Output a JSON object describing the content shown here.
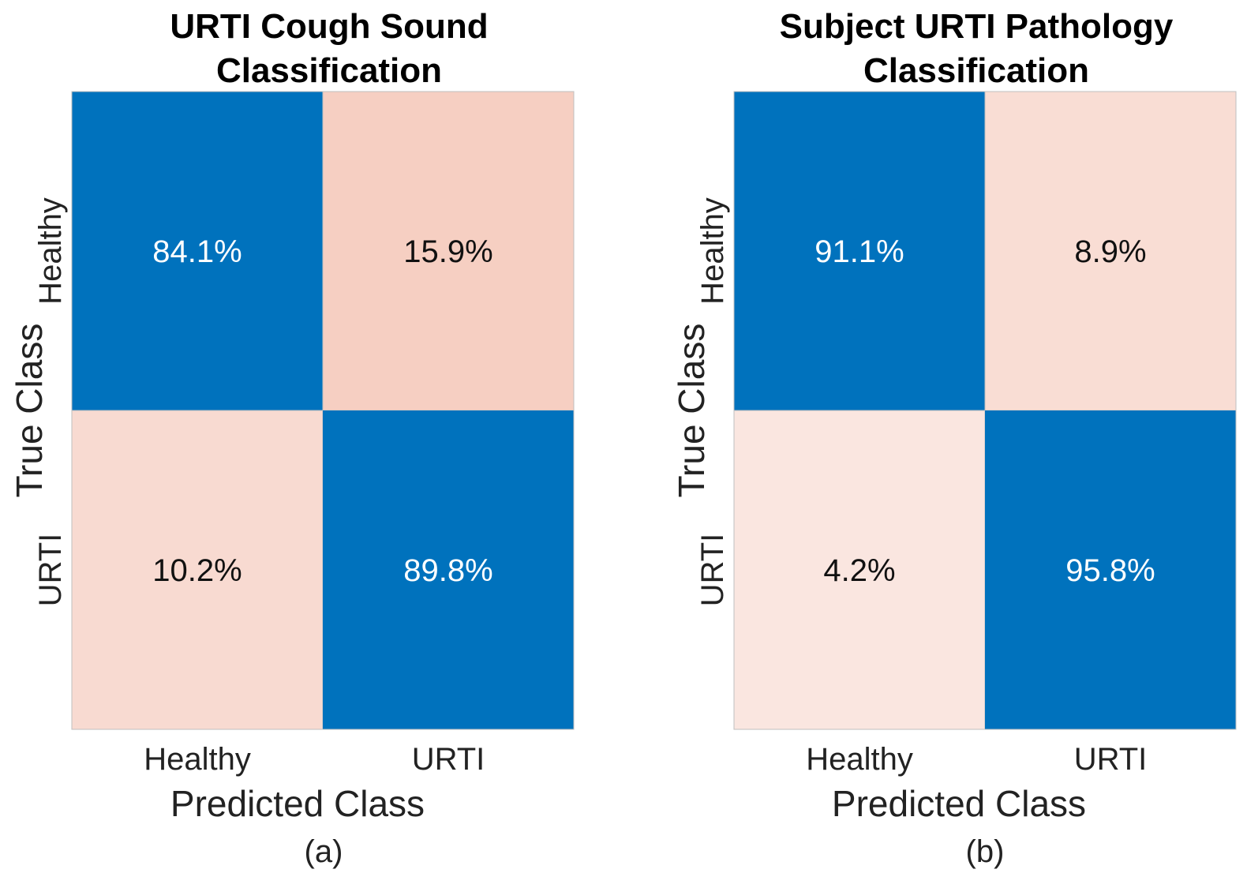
{
  "chart_data": [
    {
      "type": "heatmap",
      "panel": "a",
      "title_lines": [
        "URTI Cough Sound",
        "Classification"
      ],
      "xlabel": "Predicted Class",
      "ylabel": "True Class",
      "categories": [
        "Healthy",
        "URTI"
      ],
      "rows": [
        {
          "true_class": "Healthy",
          "values": [
            84.1,
            15.9
          ],
          "labels": [
            "84.1%",
            "15.9%"
          ]
        },
        {
          "true_class": "URTI",
          "values": [
            10.2,
            89.8
          ],
          "labels": [
            "10.2%",
            "89.8%"
          ]
        }
      ],
      "caption": "(a)"
    },
    {
      "type": "heatmap",
      "panel": "b",
      "title_lines": [
        "Subject URTI Pathology",
        "Classification"
      ],
      "xlabel": "Predicted Class",
      "ylabel": "True Class",
      "categories": [
        "Healthy",
        "URTI"
      ],
      "rows": [
        {
          "true_class": "Healthy",
          "values": [
            91.1,
            8.9
          ],
          "labels": [
            "91.1%",
            "8.9%"
          ]
        },
        {
          "true_class": "URTI",
          "values": [
            4.2,
            95.8
          ],
          "labels": [
            "4.2%",
            "95.8%"
          ]
        }
      ],
      "caption": "(b)"
    }
  ],
  "colors": {
    "correct_cell": "#0072BD",
    "incorrect_cell_max": "#F6CFC2",
    "incorrect_cell_min": "#FCEEEA",
    "text_on_dark": "#ffffff",
    "text_on_light": "#111111",
    "cell_border": "#bfbfbf"
  }
}
